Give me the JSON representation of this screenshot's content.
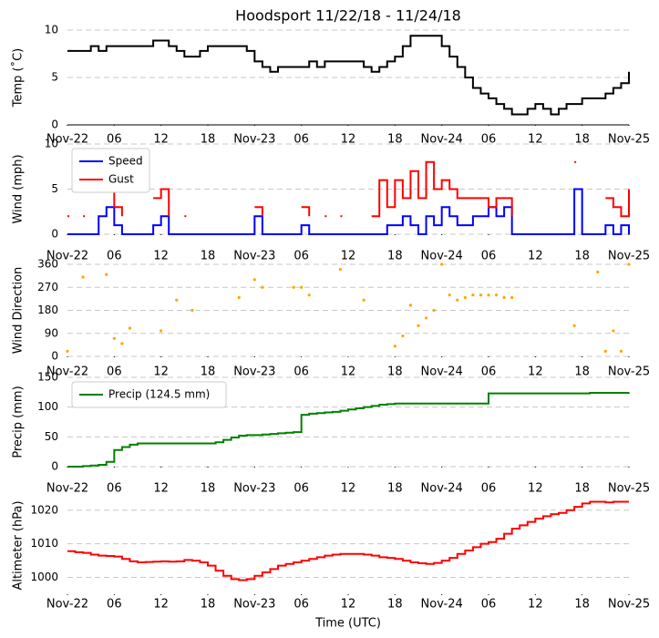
{
  "chart_data": [
    {
      "type": "line",
      "title": "Hoodsport 11/22/18 - 11/24/18",
      "ylabel": "Temp (˚C)",
      "color": "#000000",
      "x": [
        0,
        1,
        2,
        3,
        4,
        5,
        6,
        7,
        8,
        9,
        10,
        11,
        12,
        13,
        14,
        15,
        16,
        17,
        18,
        19,
        20,
        21,
        22,
        23,
        24,
        25,
        26,
        27,
        28,
        29,
        30,
        31,
        32,
        33,
        34,
        35,
        36,
        37,
        38,
        39,
        40,
        41,
        42,
        43,
        44,
        45,
        46,
        47,
        48,
        49,
        50,
        51,
        52,
        53,
        54,
        55,
        56,
        57,
        58,
        59,
        60,
        61,
        62,
        63,
        64,
        65,
        66,
        67,
        68,
        69,
        70,
        71,
        72
      ],
      "values": [
        7.8,
        7.8,
        7.8,
        8.3,
        7.8,
        8.3,
        8.3,
        8.3,
        8.3,
        8.3,
        8.3,
        8.9,
        8.9,
        8.3,
        7.8,
        7.2,
        7.2,
        7.8,
        8.3,
        8.3,
        8.3,
        8.3,
        8.3,
        7.8,
        6.7,
        6.1,
        5.6,
        6.1,
        6.1,
        6.1,
        6.1,
        6.7,
        6.1,
        6.7,
        6.7,
        6.7,
        6.7,
        6.7,
        6.1,
        5.6,
        6.1,
        6.7,
        7.2,
        8.3,
        9.4,
        9.4,
        9.4,
        9.4,
        8.3,
        7.2,
        6.1,
        5.0,
        3.9,
        3.3,
        2.8,
        2.2,
        1.7,
        1.1,
        1.1,
        1.7,
        2.2,
        1.7,
        1.1,
        1.7,
        2.2,
        2.2,
        2.8,
        2.8,
        2.8,
        3.3,
        3.9,
        4.4,
        5.6
      ],
      "xlim": [
        0,
        72
      ],
      "ylim": [
        0,
        10
      ],
      "yticks": [
        0,
        5,
        10
      ],
      "xticks": [
        {
          "value": 0,
          "label": "Nov-22"
        },
        {
          "value": 6,
          "label": "06"
        },
        12,
        18,
        {
          "value": 24,
          "label": "Nov-23"
        },
        {
          "value": 30,
          "label": "06"
        },
        {
          "value": 36,
          "label": "12"
        },
        {
          "value": 42,
          "label": "18"
        },
        {
          "value": 48,
          "label": "Nov-24"
        },
        {
          "value": 54,
          "label": "06"
        },
        {
          "value": 60,
          "label": "12"
        },
        {
          "value": 66,
          "label": "18"
        },
        {
          "value": 72,
          "label": "Nov-25"
        }
      ],
      "grid": true
    },
    {
      "type": "line",
      "ylabel": "Wind (mph)",
      "legend": "upper left",
      "x": [
        0,
        1,
        2,
        3,
        4,
        5,
        6,
        7,
        8,
        9,
        10,
        11,
        12,
        13,
        14,
        15,
        16,
        17,
        18,
        19,
        20,
        21,
        22,
        23,
        24,
        25,
        26,
        27,
        28,
        29,
        30,
        31,
        32,
        33,
        34,
        35,
        36,
        37,
        38,
        39,
        40,
        41,
        42,
        43,
        44,
        45,
        46,
        47,
        48,
        49,
        50,
        51,
        52,
        53,
        54,
        55,
        56,
        57,
        58,
        59,
        60,
        61,
        62,
        63,
        64,
        65,
        66,
        67,
        68,
        69,
        70,
        71,
        72
      ],
      "series": [
        {
          "name": "Speed",
          "color": "#0000ff",
          "values": [
            0,
            0,
            0,
            0,
            2,
            3,
            1,
            0,
            0,
            0,
            0,
            1,
            2,
            0,
            0,
            0,
            0,
            0,
            0,
            0,
            0,
            0,
            0,
            0,
            2,
            0,
            0,
            0,
            0,
            0,
            1,
            0,
            0,
            0,
            0,
            0,
            0,
            0,
            0,
            0,
            0,
            1,
            1,
            2,
            1,
            0,
            2,
            1,
            3,
            2,
            1,
            1,
            2,
            2,
            3,
            2,
            3,
            0,
            0,
            0,
            0,
            0,
            0,
            0,
            0,
            5,
            0,
            0,
            0,
            1,
            0,
            1,
            0
          ]
        },
        {
          "name": "Gust",
          "color": "#ff0000",
          "values": [
            2,
            null,
            2,
            null,
            null,
            6,
            3,
            2,
            null,
            null,
            null,
            4,
            5,
            2,
            null,
            2,
            null,
            null,
            null,
            null,
            null,
            null,
            null,
            null,
            3,
            2,
            null,
            null,
            null,
            null,
            3,
            2,
            null,
            2,
            null,
            2,
            null,
            null,
            null,
            2,
            6,
            3,
            6,
            4,
            7,
            4,
            8,
            5,
            6,
            5,
            4,
            4,
            4,
            4,
            3,
            4,
            4,
            2,
            null,
            null,
            null,
            null,
            null,
            null,
            null,
            8,
            null,
            null,
            null,
            4,
            3,
            2,
            5
          ]
        }
      ],
      "xlim": [
        0,
        72
      ],
      "ylim": [
        0,
        10
      ],
      "yticks": [
        0,
        5,
        10
      ],
      "xticks": [
        {
          "value": 0,
          "label": "Nov-22"
        },
        {
          "value": 6,
          "label": "06"
        },
        12,
        18,
        {
          "value": 24,
          "label": "Nov-23"
        },
        {
          "value": 30,
          "label": "06"
        },
        {
          "value": 36,
          "label": "12"
        },
        {
          "value": 42,
          "label": "18"
        },
        {
          "value": 48,
          "label": "Nov-24"
        },
        {
          "value": 54,
          "label": "06"
        },
        {
          "value": 60,
          "label": "12"
        },
        {
          "value": 66,
          "label": "18"
        },
        {
          "value": 72,
          "label": "Nov-25"
        }
      ],
      "grid": true
    },
    {
      "type": "scatter",
      "ylabel": "Wind Direction",
      "color": "#ffa500",
      "x": [
        0,
        1,
        2,
        3,
        4,
        5,
        6,
        7,
        8,
        9,
        10,
        11,
        12,
        13,
        14,
        15,
        16,
        17,
        18,
        19,
        20,
        21,
        22,
        23,
        24,
        25,
        26,
        27,
        28,
        29,
        30,
        31,
        32,
        33,
        34,
        35,
        36,
        37,
        38,
        39,
        40,
        41,
        42,
        43,
        44,
        45,
        46,
        47,
        48,
        49,
        50,
        51,
        52,
        53,
        54,
        55,
        56,
        57,
        58,
        59,
        60,
        61,
        62,
        63,
        64,
        65,
        66,
        67,
        68,
        69,
        70,
        71,
        72
      ],
      "values": [
        20,
        null,
        310,
        null,
        null,
        320,
        70,
        50,
        110,
        null,
        null,
        null,
        100,
        null,
        220,
        null,
        180,
        null,
        null,
        null,
        null,
        null,
        230,
        null,
        300,
        270,
        null,
        null,
        null,
        270,
        270,
        240,
        null,
        null,
        null,
        340,
        null,
        null,
        220,
        null,
        null,
        null,
        40,
        80,
        200,
        120,
        150,
        180,
        360,
        240,
        220,
        230,
        240,
        240,
        240,
        240,
        230,
        230,
        null,
        null,
        null,
        null,
        null,
        null,
        null,
        120,
        null,
        null,
        330,
        20,
        100,
        20,
        360
      ],
      "xlim": [
        0,
        72
      ],
      "ylim": [
        0,
        360
      ],
      "yticks": [
        0,
        90,
        180,
        270,
        360
      ],
      "xticks": [
        {
          "value": 0,
          "label": "Nov-22"
        },
        {
          "value": 6,
          "label": "06"
        },
        12,
        18,
        {
          "value": 24,
          "label": "Nov-23"
        },
        {
          "value": 30,
          "label": "06"
        },
        {
          "value": 36,
          "label": "12"
        },
        {
          "value": 42,
          "label": "18"
        },
        {
          "value": 48,
          "label": "Nov-24"
        },
        {
          "value": 54,
          "label": "06"
        },
        {
          "value": 60,
          "label": "12"
        },
        {
          "value": 66,
          "label": "18"
        },
        {
          "value": 72,
          "label": "Nov-25"
        }
      ],
      "grid": true
    },
    {
      "type": "line",
      "ylabel": "Precip (mm)",
      "legend": "upper left",
      "x": [
        0,
        1,
        2,
        3,
        4,
        5,
        6,
        7,
        8,
        9,
        10,
        11,
        12,
        13,
        14,
        15,
        16,
        17,
        18,
        19,
        20,
        21,
        22,
        23,
        24,
        25,
        26,
        27,
        28,
        29,
        30,
        31,
        32,
        33,
        34,
        35,
        36,
        37,
        38,
        39,
        40,
        41,
        42,
        43,
        44,
        45,
        46,
        47,
        48,
        49,
        50,
        51,
        52,
        53,
        54,
        55,
        56,
        57,
        58,
        59,
        60,
        61,
        62,
        63,
        64,
        65,
        66,
        67,
        68,
        69,
        70,
        71,
        72
      ],
      "series": [
        {
          "name": "Precip (124.5 mm)",
          "color": "#008000",
          "values": [
            0,
            0,
            1,
            2,
            3,
            8,
            28,
            33,
            37,
            39,
            39,
            39,
            39,
            39,
            39,
            39,
            39,
            39,
            39,
            41,
            45,
            49,
            52,
            53,
            53,
            54,
            55,
            56,
            57,
            58,
            87,
            89,
            90,
            91,
            92,
            94,
            96,
            98,
            100,
            102,
            104,
            105,
            106,
            106,
            106,
            106,
            106,
            106,
            106,
            106,
            106,
            106,
            106,
            106,
            123,
            123,
            123,
            123,
            123,
            123,
            123,
            123,
            123,
            123,
            123,
            123,
            123,
            124,
            124,
            124,
            124,
            124,
            124.5
          ]
        }
      ],
      "xlim": [
        0,
        72
      ],
      "ylim": [
        0,
        150
      ],
      "yticks": [
        0,
        50,
        100,
        150
      ],
      "xticks": [
        {
          "value": 0,
          "label": "Nov-22"
        },
        {
          "value": 6,
          "label": "06"
        },
        12,
        18,
        {
          "value": 24,
          "label": "Nov-23"
        },
        {
          "value": 30,
          "label": "06"
        },
        {
          "value": 36,
          "label": "12"
        },
        {
          "value": 42,
          "label": "18"
        },
        {
          "value": 48,
          "label": "Nov-24"
        },
        {
          "value": 54,
          "label": "06"
        },
        {
          "value": 60,
          "label": "12"
        },
        {
          "value": 66,
          "label": "18"
        },
        {
          "value": 72,
          "label": "Nov-25"
        }
      ],
      "grid": true
    },
    {
      "type": "line",
      "ylabel": "Altimeter (hPa)",
      "xlabel": "Time (UTC)",
      "color": "#ff0000",
      "x": [
        0,
        1,
        2,
        3,
        4,
        5,
        6,
        7,
        8,
        9,
        10,
        11,
        12,
        13,
        14,
        15,
        16,
        17,
        18,
        19,
        20,
        21,
        22,
        23,
        24,
        25,
        26,
        27,
        28,
        29,
        30,
        31,
        32,
        33,
        34,
        35,
        36,
        37,
        38,
        39,
        40,
        41,
        42,
        43,
        44,
        45,
        46,
        47,
        48,
        49,
        50,
        51,
        52,
        53,
        54,
        55,
        56,
        57,
        58,
        59,
        60,
        61,
        62,
        63,
        64,
        65,
        66,
        67,
        68,
        69,
        70,
        71,
        72
      ],
      "values": [
        1007.8,
        1007.5,
        1007.3,
        1006.8,
        1006.5,
        1006.4,
        1006.2,
        1005.5,
        1004.8,
        1004.5,
        1004.6,
        1004.7,
        1004.8,
        1004.7,
        1004.8,
        1005.2,
        1005.0,
        1004.5,
        1003.5,
        1002,
        1000.5,
        999.5,
        999.2,
        999.5,
        1000.5,
        1001.5,
        1002.5,
        1003.5,
        1004,
        1004.5,
        1005,
        1005.5,
        1006,
        1006.5,
        1006.8,
        1007,
        1007,
        1007,
        1006.8,
        1006.5,
        1006,
        1005.8,
        1005.5,
        1005,
        1004.5,
        1004.2,
        1004,
        1004.3,
        1005,
        1005.8,
        1007,
        1008,
        1009,
        1010,
        1010.5,
        1011.5,
        1013,
        1014.5,
        1015.5,
        1016.5,
        1017.5,
        1018.2,
        1018.8,
        1019.2,
        1020,
        1021,
        1022,
        1022.5,
        1022.5,
        1022.3,
        1022.5,
        1022.5,
        1022.5
      ],
      "xlim": [
        0,
        72
      ],
      "ylim": [
        995,
        1024
      ],
      "yticks": [
        1000,
        1010,
        1020
      ],
      "xticks": [
        {
          "value": 0,
          "label": "Nov-22"
        },
        {
          "value": 6,
          "label": "06"
        },
        12,
        18,
        {
          "value": 24,
          "label": "Nov-23"
        },
        {
          "value": 30,
          "label": "06"
        },
        {
          "value": 36,
          "label": "12"
        },
        {
          "value": 42,
          "label": "18"
        },
        {
          "value": 48,
          "label": "Nov-24"
        },
        {
          "value": 54,
          "label": "06"
        },
        {
          "value": 60,
          "label": "12"
        },
        {
          "value": 66,
          "label": "18"
        },
        {
          "value": 72,
          "label": "Nov-25"
        }
      ],
      "grid": true
    }
  ]
}
